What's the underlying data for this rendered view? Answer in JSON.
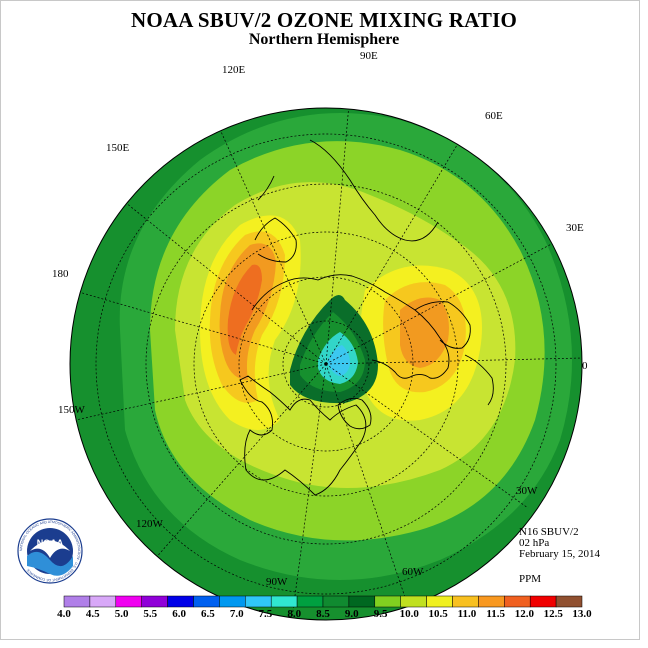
{
  "title": "NOAA SBUV/2 OZONE MIXING RATIO",
  "subtitle": "Northern Hemisphere",
  "longitude_labels": {
    "lon_90e": "90E",
    "lon_120e": "120E",
    "lon_60e": "60E",
    "lon_150e": "150E",
    "lon_30e": "30E",
    "lon_180": "180",
    "lon_0": "0",
    "lon_150w": "150W",
    "lon_30w": "30W",
    "lon_120w": "120W",
    "lon_60w": "60W",
    "lon_90w": "90W"
  },
  "info": {
    "instrument": "N16 SBUV/2",
    "level": "02 hPa",
    "date": "February 15, 2014",
    "units": "PPM"
  },
  "logo": {
    "text": "NOAA",
    "ring_text": "NATIONAL OCEANIC AND ATMOSPHERIC ADMINISTRATION · U.S. DEPARTMENT OF COMMERCE"
  },
  "colorbar": {
    "labels": [
      "4.0",
      "4.5",
      "5.0",
      "5.5",
      "6.0",
      "6.5",
      "7.0",
      "7.5",
      "8.0",
      "8.5",
      "9.0",
      "9.5",
      "10.0",
      "10.5",
      "11.0",
      "11.5",
      "12.0",
      "12.5",
      "13.0"
    ],
    "colors": [
      "#b07fe8",
      "#d8a8f8",
      "#f000f0",
      "#9000d8",
      "#0000e8",
      "#0060f0",
      "#0098f0",
      "#30c8f8",
      "#30e8d0",
      "#00a040",
      "#108a30",
      "#006820",
      "#80d020",
      "#c0e020",
      "#f0f020",
      "#f8c020",
      "#f89820",
      "#f06020",
      "#f00000",
      "#905030"
    ]
  },
  "map_colors": {
    "deep_green": "#0a6e2a",
    "green": "#16902e",
    "light_green": "#2aa83a",
    "lime": "#8cd428",
    "yellow_green": "#c8e432",
    "yellow": "#f4f020",
    "gold": "#f6c81e",
    "orange": "#f29a20",
    "dark_orange": "#ee6e20",
    "teal": "#32d6c8",
    "cyan": "#3cc8f0"
  }
}
